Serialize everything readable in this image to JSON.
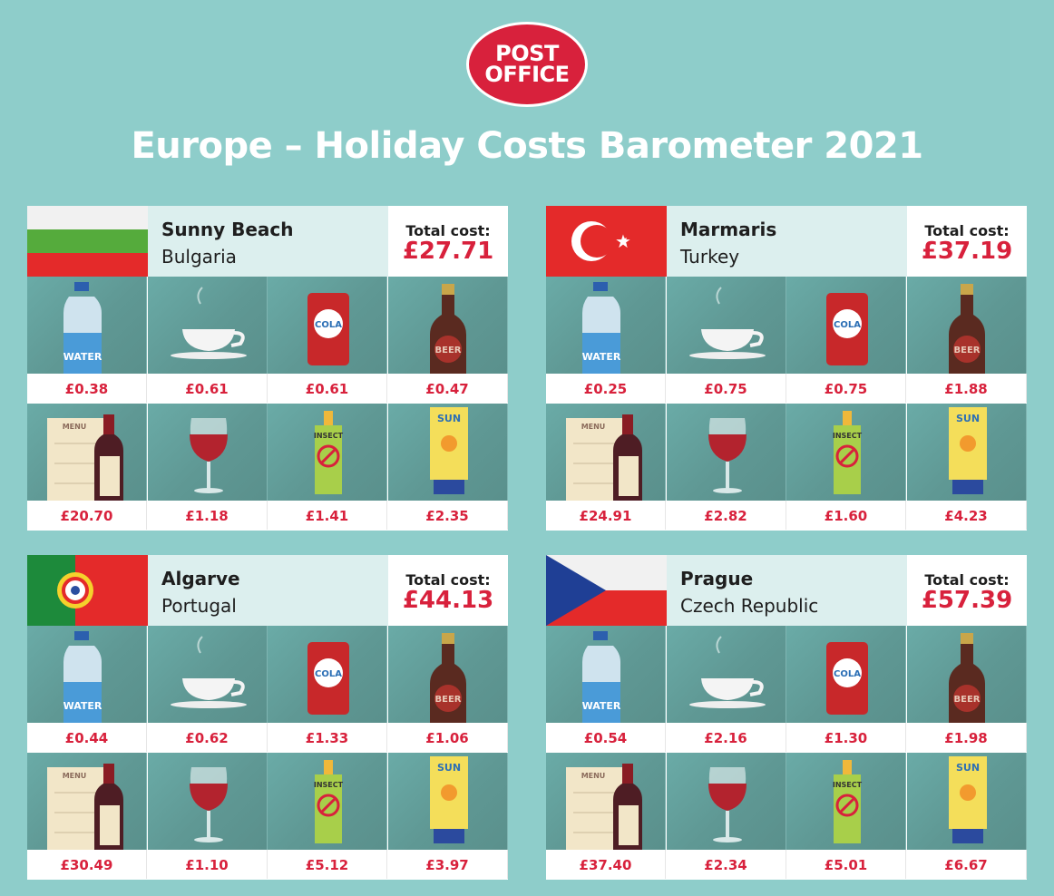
{
  "logo": {
    "line1": "POST",
    "line2": "OFFICE"
  },
  "title": "Europe – Holiday Costs Barometer 2021",
  "total_label": "Total cost:",
  "items": [
    {
      "icon": "water-bottle",
      "label": "WATER"
    },
    {
      "icon": "coffee-cup",
      "label": ""
    },
    {
      "icon": "cola-can",
      "label": "COLA"
    },
    {
      "icon": "beer-bottle",
      "label": "BEER"
    },
    {
      "icon": "menu-and-wine",
      "label": "MENU"
    },
    {
      "icon": "wine-glass",
      "label": ""
    },
    {
      "icon": "insect-repellent",
      "label": "INSECT"
    },
    {
      "icon": "sun-cream",
      "label": "SUN"
    }
  ],
  "destinations": [
    {
      "city": "Sunny Beach",
      "country": "Bulgaria",
      "flag": "bulgaria",
      "total": "£27.71",
      "prices": [
        "£0.38",
        "£0.61",
        "£0.61",
        "£0.47",
        "£20.70",
        "£1.18",
        "£1.41",
        "£2.35"
      ]
    },
    {
      "city": "Marmaris",
      "country": "Turkey",
      "flag": "turkey",
      "total": "£37.19",
      "prices": [
        "£0.25",
        "£0.75",
        "£0.75",
        "£1.88",
        "£24.91",
        "£2.82",
        "£1.60",
        "£4.23"
      ]
    },
    {
      "city": "Algarve",
      "country": "Portugal",
      "flag": "portugal",
      "total": "£44.13",
      "prices": [
        "£0.44",
        "£0.62",
        "£1.33",
        "£1.06",
        "£30.49",
        "£1.10",
        "£5.12",
        "£3.97"
      ]
    },
    {
      "city": "Prague",
      "country": "Czech Republic",
      "flag": "czech-republic",
      "total": "£57.39",
      "prices": [
        "£0.54",
        "£2.16",
        "£1.30",
        "£1.98",
        "£37.40",
        "£2.34",
        "£5.01",
        "£6.67"
      ]
    }
  ],
  "colors": {
    "background": "#8ecdca",
    "accent_red": "#d8213c",
    "tile": "#5f9894",
    "header_bg": "#dcefee"
  }
}
